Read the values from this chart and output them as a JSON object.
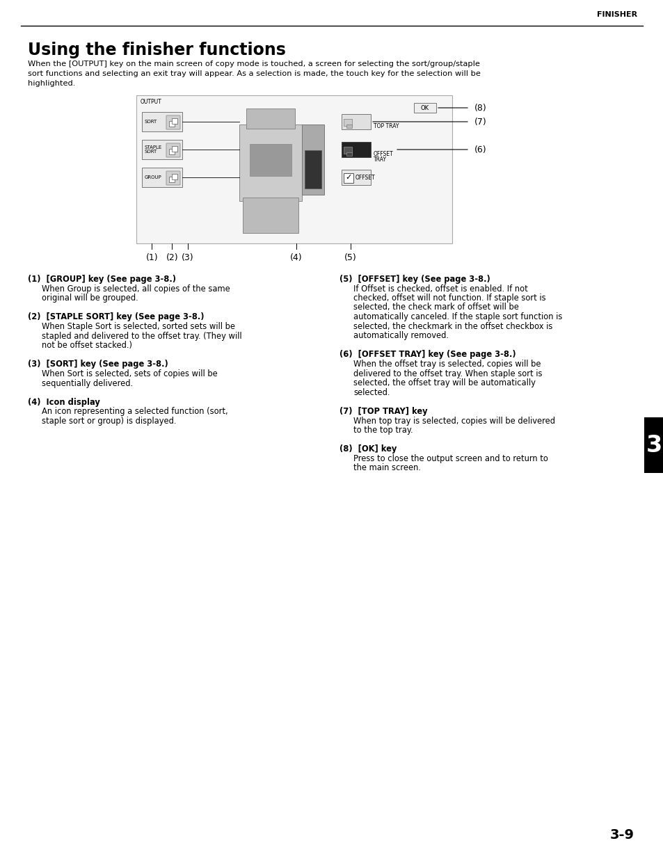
{
  "bg_color": "#ffffff",
  "header_text": "FINISHER",
  "title": "Using the finisher functions",
  "intro_line1": "When the [OUTPUT] key on the main screen of copy mode is touched, a screen for selecting the sort/group/staple",
  "intro_line2": "sort functions and selecting an exit tray will appear. As a selection is made, the touch key for the selection will be",
  "intro_line3": "highlighted.",
  "page_number": "3-9",
  "chapter_number": "3",
  "left_col_items": [
    {
      "heading": "(1)  [GROUP] key (See page 3-8.)",
      "body_lines": [
        "When Group is selected, all copies of the same",
        "original will be grouped."
      ]
    },
    {
      "heading": "(2)  [STAPLE SORT] key (See page 3-8.)",
      "body_lines": [
        "When Staple Sort is selected, sorted sets will be",
        "stapled and delivered to the offset tray. (They will",
        "not be offset stacked.)"
      ]
    },
    {
      "heading": "(3)  [SORT] key (See page 3-8.)",
      "body_lines": [
        "When Sort is selected, sets of copies will be",
        "sequentially delivered."
      ]
    },
    {
      "heading": "(4)  Icon display",
      "body_lines": [
        "An icon representing a selected function (sort,",
        "staple sort or group) is displayed."
      ]
    }
  ],
  "right_col_items": [
    {
      "heading": "(5)  [OFFSET] key (See page 3-8.)",
      "body_lines": [
        "If Offset is checked, offset is enabled. If not",
        "checked, offset will not function. If staple sort is",
        "selected, the check mark of offset will be",
        "automatically canceled. If the staple sort function is",
        "selected, the checkmark in the offset checkbox is",
        "automatically removed."
      ]
    },
    {
      "heading": "(6)  [OFFSET TRAY] key (See page 3-8.)",
      "body_lines": [
        "When the offset tray is selected, copies will be",
        "delivered to the offset tray. When staple sort is",
        "selected, the offset tray will be automatically",
        "selected."
      ]
    },
    {
      "heading": "(7)  [TOP TRAY] key",
      "body_lines": [
        "When top tray is selected, copies will be delivered",
        "to the top tray."
      ]
    },
    {
      "heading": "(8)  [OK] key",
      "body_lines": [
        "Press to close the output screen and to return to",
        "the main screen."
      ]
    }
  ]
}
